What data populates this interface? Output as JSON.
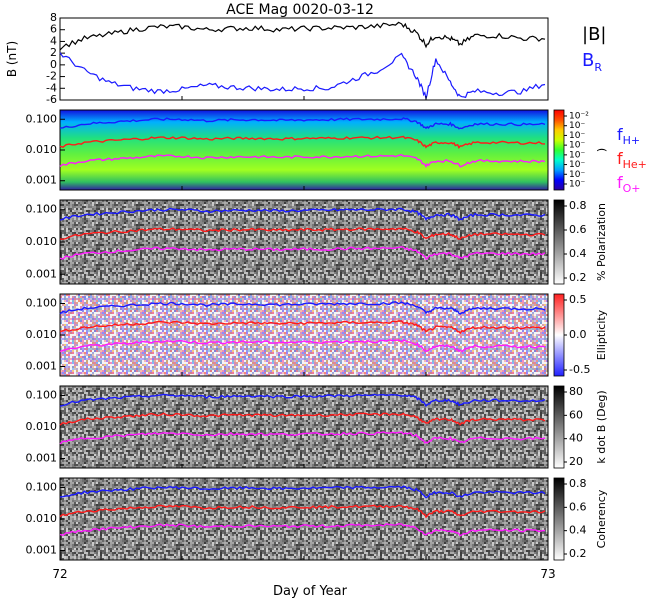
{
  "title": "ACE Mag 0020-03-12",
  "colors": {
    "black": "#000000",
    "blue": "#1a1aff",
    "red": "#ff1a1a",
    "magenta": "#ff1aff"
  },
  "chart_data": [
    {
      "type": "line",
      "panel": "magnetic-field",
      "ylabel": "B (nT)",
      "ylim": [
        -6,
        8
      ],
      "yticks": [
        "8",
        "6",
        "4",
        "2",
        "0",
        "-2",
        "-4",
        "-6"
      ],
      "series": [
        {
          "name": "|B|",
          "color": "#000000",
          "x": [
            72.0,
            72.05,
            72.1,
            72.15,
            72.2,
            72.25,
            72.3,
            72.35,
            72.4,
            72.45,
            72.5,
            72.55,
            72.6,
            72.65,
            72.7,
            72.73,
            72.75,
            72.77,
            72.8,
            72.82,
            72.85,
            72.9,
            72.95,
            73.0
          ],
          "y": [
            3,
            4.5,
            5.2,
            6.0,
            6.5,
            6.5,
            6.0,
            6.2,
            6.3,
            6.0,
            6.2,
            6.3,
            6.4,
            6.6,
            7.0,
            5.5,
            3.5,
            5.0,
            4.5,
            3.5,
            5.0,
            5.0,
            4.5,
            4.5
          ]
        },
        {
          "name": "B_R",
          "color": "#1a1aff",
          "x": [
            72.0,
            72.05,
            72.1,
            72.15,
            72.2,
            72.25,
            72.3,
            72.35,
            72.4,
            72.45,
            72.5,
            72.55,
            72.6,
            72.65,
            72.7,
            72.73,
            72.75,
            72.77,
            72.8,
            72.82,
            72.85,
            72.9,
            72.95,
            73.0
          ],
          "y": [
            2,
            -1.0,
            -3.0,
            -4.0,
            -4.5,
            -4.2,
            -3.5,
            -3.8,
            -4.0,
            -4.2,
            -4.0,
            -4.0,
            -2.5,
            -1.0,
            1.5,
            -2.0,
            -5.5,
            1.0,
            -3.0,
            -5.5,
            -4.5,
            -4.8,
            -4.5,
            -3.0
          ]
        }
      ]
    },
    {
      "type": "heatmap",
      "panel": "power",
      "ylim": [
        0.0005,
        0.2
      ],
      "yticks": [
        "0.100",
        "0.010",
        "0.001"
      ],
      "colorbar": {
        "labels": [
          "10⁻²",
          "10⁻",
          "10⁻",
          "10⁻",
          "10⁻",
          "10⁻",
          "10⁻",
          "10⁻"
        ],
        "label": ")"
      }
    },
    {
      "type": "heatmap",
      "panel": "polarization",
      "ylim": [
        0.0005,
        0.2
      ],
      "yticks": [
        "0.100",
        "0.010",
        "0.001"
      ],
      "colorbar": {
        "labels": [
          "0.8",
          "0.6",
          "0.4",
          "0.2"
        ],
        "label": "% Polarization"
      }
    },
    {
      "type": "heatmap",
      "panel": "ellipticity",
      "ylim": [
        0.0005,
        0.2
      ],
      "yticks": [
        "0.100",
        "0.010",
        "0.001"
      ],
      "colorbar": {
        "labels": [
          "0.5",
          "0.0",
          "-0.5"
        ],
        "label": "Ellipticity"
      }
    },
    {
      "type": "heatmap",
      "panel": "k-dot-b",
      "ylim": [
        0.0005,
        0.2
      ],
      "yticks": [
        "0.100",
        "0.010",
        "0.001"
      ],
      "colorbar": {
        "labels": [
          "80",
          "60",
          "40",
          "20"
        ],
        "label": "k dot B (Deg)"
      }
    },
    {
      "type": "heatmap",
      "panel": "coherency",
      "ylim": [
        0.0005,
        0.2
      ],
      "yticks": [
        "0.100",
        "0.010",
        "0.001"
      ],
      "colorbar": {
        "labels": [
          "0.8",
          "0.6",
          "0.4",
          "0.2"
        ],
        "label": "Coherency"
      }
    }
  ],
  "gyrofrequencies": {
    "x": [
      72.0,
      72.05,
      72.1,
      72.15,
      72.2,
      72.25,
      72.3,
      72.35,
      72.4,
      72.45,
      72.5,
      72.55,
      72.6,
      72.65,
      72.7,
      72.73,
      72.75,
      72.77,
      72.8,
      72.82,
      72.85,
      72.9,
      72.95,
      73.0
    ],
    "series": [
      {
        "name": "f_H+",
        "color": "#1a1aff",
        "y": [
          0.05,
          0.07,
          0.08,
          0.09,
          0.1,
          0.1,
          0.09,
          0.095,
          0.097,
          0.092,
          0.095,
          0.097,
          0.1,
          0.1,
          0.105,
          0.085,
          0.05,
          0.07,
          0.07,
          0.05,
          0.07,
          0.07,
          0.068,
          0.068
        ]
      },
      {
        "name": "f_He+",
        "color": "#ff1a1a",
        "y": [
          0.0125,
          0.0175,
          0.02,
          0.0225,
          0.025,
          0.025,
          0.0225,
          0.024,
          0.024,
          0.023,
          0.024,
          0.024,
          0.025,
          0.025,
          0.026,
          0.021,
          0.0125,
          0.0175,
          0.0175,
          0.0125,
          0.0175,
          0.0175,
          0.017,
          0.017
        ]
      },
      {
        "name": "f_O+",
        "color": "#ff1aff",
        "y": [
          0.0031,
          0.0044,
          0.005,
          0.0056,
          0.0063,
          0.0063,
          0.0056,
          0.006,
          0.006,
          0.0058,
          0.006,
          0.006,
          0.0063,
          0.0063,
          0.0066,
          0.0053,
          0.0031,
          0.0044,
          0.0044,
          0.0031,
          0.0044,
          0.0044,
          0.0043,
          0.0043
        ]
      }
    ]
  },
  "legend": {
    "top": [
      {
        "text": "|B|",
        "color": "#000000"
      },
      {
        "text": "B",
        "sub": "R",
        "color": "#1a1aff"
      }
    ],
    "bottom": [
      {
        "text": "f",
        "sub": "H+",
        "color": "#1a1aff"
      },
      {
        "text": "f",
        "sub": "He+",
        "color": "#ff1a1a"
      },
      {
        "text": "f",
        "sub": "O+",
        "color": "#ff1aff"
      }
    ]
  },
  "xaxis": {
    "label": "Day of Year",
    "range": [
      72,
      73
    ],
    "ticks": [
      "72",
      "73"
    ]
  }
}
